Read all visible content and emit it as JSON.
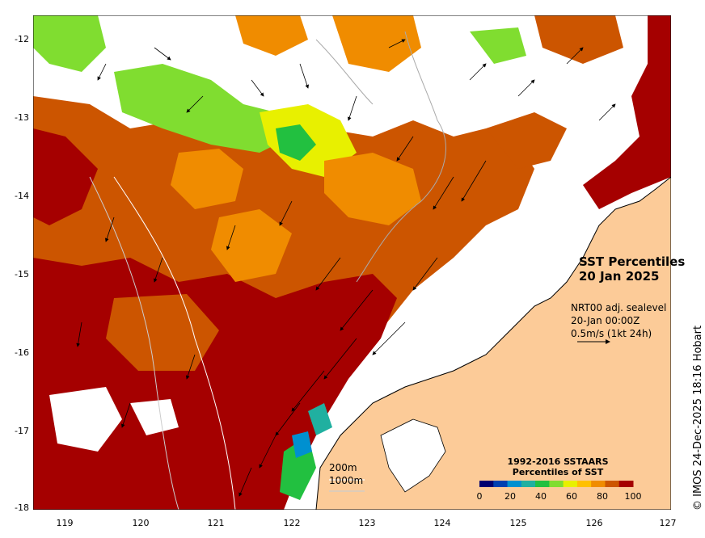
{
  "map": {
    "title_line1": "SST Percentiles",
    "title_line2": "20 Jan 2025",
    "product": "NRT00 adj. sealevel",
    "time": "20-Jan 00:00Z",
    "arrow_scale": "0.5m/s (1kt 24h)",
    "contour_200": "200m",
    "contour_1000": "1000m",
    "legend_line1": "1992-2016 SSTAARS",
    "legend_line2": "Percentiles of SST",
    "credit": "© IMOS 24-Dec-2025 18:16 Hobart",
    "lat_ticks": [
      "-12",
      "-13",
      "-14",
      "-15",
      "-16",
      "-17",
      "-18"
    ],
    "lon_ticks": [
      "119",
      "120",
      "121",
      "122",
      "123",
      "124",
      "125",
      "126",
      "127"
    ],
    "legend_ticks": [
      "0",
      "20",
      "40",
      "60",
      "80",
      "100"
    ],
    "colors": {
      "land": "#fccb98",
      "p100": "#a50000",
      "p90": "#cc5500",
      "p80": "#f08c00",
      "p70": "#ffc000",
      "p60": "#e8f000",
      "p50": "#80dd30",
      "p40": "#22c040",
      "p30": "#20b0a0",
      "p20": "#0090d0",
      "p10": "#0040b0",
      "p0": "#000070"
    },
    "legend_colors": [
      "#000070",
      "#0040b0",
      "#0090d0",
      "#20b0a0",
      "#22c040",
      "#80dd30",
      "#e8f000",
      "#ffc000",
      "#f08c00",
      "#cc5500",
      "#a50000"
    ]
  }
}
